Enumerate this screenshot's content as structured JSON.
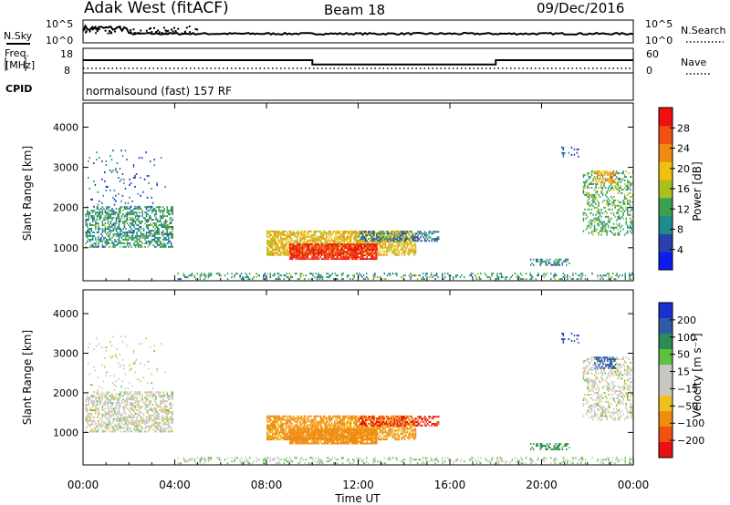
{
  "header": {
    "radar": "Adak West (fitACF)",
    "beam": "Beam 18",
    "date": "09/Dec/2016"
  },
  "noise_panel": {
    "left_label": "N.Sky",
    "right_label": "N.Search",
    "top_tick": "10^5",
    "bottom_tick": "10^0"
  },
  "freq_panel": {
    "left_label_line1": "Freq.",
    "left_label_line2": "[MHz]",
    "left_ticks": [
      "18",
      "8"
    ],
    "right_label": "Nave",
    "right_ticks": [
      "60",
      "0"
    ],
    "cpid_label": "CPID",
    "freq_mhz_steps": [
      {
        "from": 0,
        "to": 10,
        "freq": 13.0
      },
      {
        "from": 10,
        "to": 18,
        "freq": 10.8
      },
      {
        "from": 18,
        "to": 24,
        "freq": 13.0
      }
    ]
  },
  "cpid_text": "normalsound (fast) 157 RF",
  "power_panel": {
    "ylabel": "Slant Range [km]",
    "yticks": [
      "1000",
      "2000",
      "3000",
      "4000"
    ],
    "colorbar_label": "Power [dB]",
    "colorbar_ticks": [
      "4",
      "8",
      "12",
      "16",
      "20",
      "24",
      "28"
    ],
    "colorbar_colors": [
      "#0a1cf0",
      "#2a3fb0",
      "#1e8c8c",
      "#3aa050",
      "#a8c020",
      "#f0c010",
      "#f08a10",
      "#f05010",
      "#f01010"
    ]
  },
  "velocity_panel": {
    "ylabel": "Slant Range [km]",
    "yticks": [
      "1000",
      "2000",
      "3000",
      "4000"
    ],
    "colorbar_label": "Velocity [m s⁻¹]",
    "colorbar_ticks": [
      "200",
      "100",
      "50",
      "15",
      "−15",
      "−50",
      "−100",
      "−200"
    ],
    "colorbar_colors": [
      "#1a2fd0",
      "#2f5aa8",
      "#2e8b57",
      "#5cc040",
      "#c8c8c0",
      "#c8c8c0",
      "#f0c020",
      "#f08c10",
      "#f05010",
      "#e81010"
    ]
  },
  "xaxis": {
    "label": "Time UT",
    "ticks": [
      "00:00",
      "04:00",
      "08:00",
      "12:00",
      "16:00",
      "20:00",
      "00:00"
    ]
  },
  "chart_data": {
    "type": "heatmap",
    "title": "Adak West (fitACF)  Beam 18  09/Dec/2016",
    "xlabel": "Time UT",
    "ylabel": "Slant Range [km]",
    "xlim_hours": [
      0,
      24
    ],
    "ylim_km": [
      180,
      4600
    ],
    "power_scale_db": [
      0,
      30
    ],
    "velocity_scale_ms": [
      -250,
      250
    ],
    "echo_regions": [
      {
        "t0": 0.1,
        "t1": 3.9,
        "r0": 1000,
        "r1": 2000,
        "power": 10,
        "velocity": 0,
        "density": 0.55
      },
      {
        "t0": 0.2,
        "t1": 3.6,
        "r0": 2000,
        "r1": 3400,
        "power": 6,
        "velocity": 0,
        "density": 0.06
      },
      {
        "t0": 8.0,
        "t1": 14.5,
        "r0": 800,
        "r1": 1400,
        "power": 18,
        "velocity": -60,
        "density": 0.75
      },
      {
        "t0": 9.0,
        "t1": 12.8,
        "r0": 700,
        "r1": 1100,
        "power": 28,
        "velocity": -80,
        "density": 0.85
      },
      {
        "t0": 12.0,
        "t1": 15.5,
        "r0": 1150,
        "r1": 1400,
        "power": 8,
        "velocity": -200,
        "density": 0.5
      },
      {
        "t0": 19.5,
        "t1": 21.2,
        "r0": 550,
        "r1": 700,
        "power": 8,
        "velocity": 60,
        "density": 0.5
      },
      {
        "t0": 21.8,
        "t1": 24.0,
        "r0": 1300,
        "r1": 2900,
        "power": 12,
        "velocity": 0,
        "density": 0.35
      },
      {
        "t0": 22.3,
        "t1": 23.2,
        "r0": 2600,
        "r1": 2900,
        "power": 20,
        "velocity": 150,
        "density": 0.6
      },
      {
        "t0": 20.8,
        "t1": 21.6,
        "r0": 3200,
        "r1": 3500,
        "power": 6,
        "velocity": 200,
        "density": 0.2
      },
      {
        "t0": 4.0,
        "t1": 24.0,
        "r0": 200,
        "r1": 350,
        "power": 10,
        "velocity": 10,
        "density": 0.3
      }
    ]
  }
}
